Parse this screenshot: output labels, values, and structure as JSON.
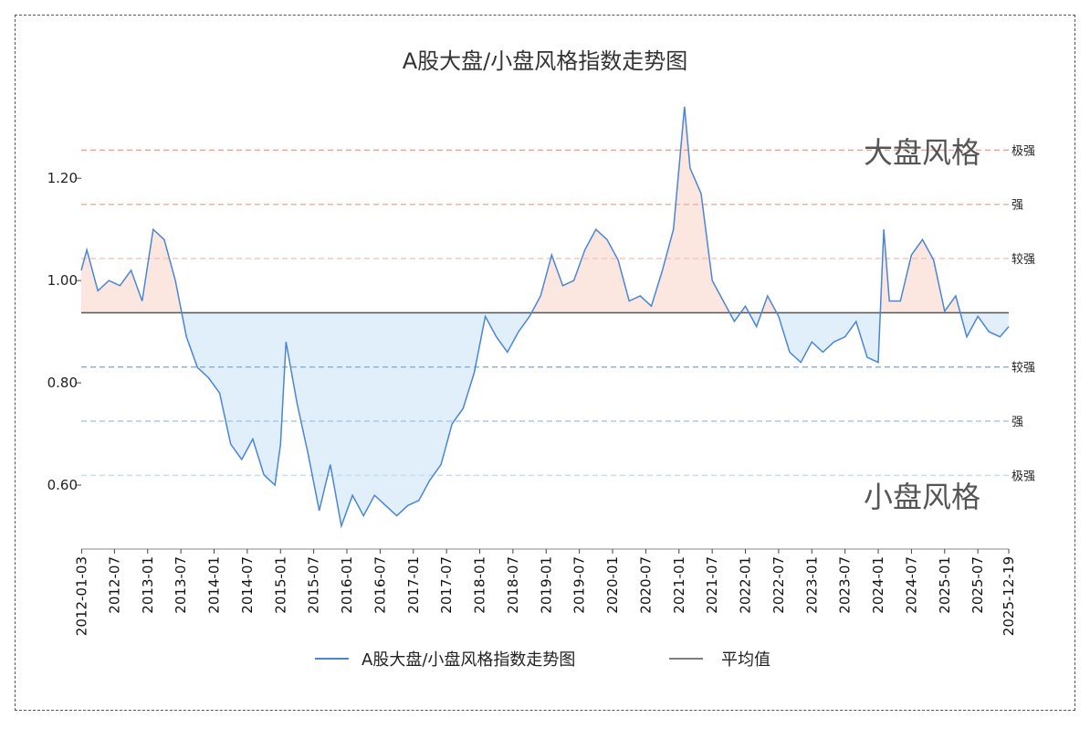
{
  "chart_data": {
    "type": "line",
    "title": "A股大盘/小盘风格指数走势图",
    "xlabel": "",
    "ylabel": "",
    "ylim": [
      0.475,
      1.37
    ],
    "y_ticks": [
      "0.60",
      "0.80",
      "1.00",
      "1.20"
    ],
    "x_ticks": [
      "2012-01-03",
      "2012-07",
      "2013-01",
      "2013-07",
      "2014-01",
      "2014-07",
      "2015-01",
      "2015-07",
      "2016-01",
      "2016-07",
      "2017-01",
      "2017-07",
      "2018-01",
      "2018-07",
      "2019-01",
      "2019-07",
      "2020-01",
      "2020-07",
      "2021-01",
      "2021-07",
      "2022-01",
      "2022-07",
      "2023-01",
      "2023-07",
      "2024-01",
      "2024-07",
      "2025-01",
      "2025-07",
      "2025-12-19"
    ],
    "mean": 0.937,
    "thresholds": [
      {
        "value": 1.255,
        "label": "极强",
        "color": "#e8a894"
      },
      {
        "value": 1.149,
        "label": "强",
        "color": "#eeb4a2"
      },
      {
        "value": 1.043,
        "label": "较强",
        "color": "#f2c8ba"
      },
      {
        "value": 0.831,
        "label": "较强",
        "color": "#8db3dc"
      },
      {
        "value": 0.725,
        "label": "强",
        "color": "#a9c9e8"
      },
      {
        "value": 0.619,
        "label": "极强",
        "color": "#c4ddef"
      }
    ],
    "region_labels": {
      "upper": "大盘风格",
      "lower": "小盘风格"
    },
    "series": [
      {
        "name": "A股大盘/小盘风格指数走势图",
        "color": "#4a86d4",
        "x": [
          "2012-01",
          "2012-02",
          "2012-04",
          "2012-06",
          "2012-08",
          "2012-10",
          "2012-12",
          "2013-02",
          "2013-04",
          "2013-06",
          "2013-08",
          "2013-10",
          "2013-12",
          "2014-02",
          "2014-04",
          "2014-06",
          "2014-08",
          "2014-10",
          "2014-12",
          "2015-01",
          "2015-02",
          "2015-04",
          "2015-06",
          "2015-08",
          "2015-10",
          "2015-12",
          "2016-02",
          "2016-04",
          "2016-06",
          "2016-08",
          "2016-10",
          "2016-12",
          "2017-02",
          "2017-04",
          "2017-06",
          "2017-08",
          "2017-10",
          "2017-12",
          "2018-02",
          "2018-04",
          "2018-06",
          "2018-08",
          "2018-10",
          "2018-12",
          "2019-02",
          "2019-04",
          "2019-06",
          "2019-08",
          "2019-10",
          "2019-12",
          "2020-02",
          "2020-04",
          "2020-06",
          "2020-08",
          "2020-10",
          "2020-12",
          "2021-01",
          "2021-02",
          "2021-03",
          "2021-05",
          "2021-07",
          "2021-09",
          "2021-11",
          "2022-01",
          "2022-03",
          "2022-05",
          "2022-07",
          "2022-09",
          "2022-11",
          "2023-01",
          "2023-03",
          "2023-05",
          "2023-07",
          "2023-09",
          "2023-11",
          "2024-01",
          "2024-02",
          "2024-03",
          "2024-05",
          "2024-07",
          "2024-09",
          "2024-11",
          "2025-01",
          "2025-03",
          "2025-05",
          "2025-07",
          "2025-09",
          "2025-11",
          "2025-12-19"
        ],
        "values": [
          1.02,
          1.06,
          0.98,
          1.0,
          0.99,
          1.02,
          0.96,
          1.1,
          1.08,
          1.0,
          0.89,
          0.83,
          0.81,
          0.78,
          0.68,
          0.65,
          0.69,
          0.62,
          0.6,
          0.68,
          0.88,
          0.76,
          0.66,
          0.55,
          0.64,
          0.52,
          0.58,
          0.54,
          0.58,
          0.56,
          0.54,
          0.56,
          0.57,
          0.61,
          0.64,
          0.72,
          0.75,
          0.82,
          0.93,
          0.89,
          0.86,
          0.9,
          0.93,
          0.97,
          1.05,
          0.99,
          1.0,
          1.06,
          1.1,
          1.08,
          1.04,
          0.96,
          0.97,
          0.95,
          1.02,
          1.1,
          1.22,
          1.34,
          1.22,
          1.17,
          1.0,
          0.96,
          0.92,
          0.95,
          0.91,
          0.97,
          0.93,
          0.86,
          0.84,
          0.88,
          0.86,
          0.88,
          0.89,
          0.92,
          0.85,
          0.84,
          1.1,
          0.96,
          0.96,
          1.05,
          1.08,
          1.04,
          0.94,
          0.97,
          0.89,
          0.93,
          0.9,
          0.89,
          0.91
        ]
      },
      {
        "name": "平均值",
        "color": "#555555"
      }
    ],
    "legend": {
      "position": "bottom",
      "entries": [
        "A股大盘/小盘风格指数走势图",
        "平均值"
      ]
    }
  }
}
